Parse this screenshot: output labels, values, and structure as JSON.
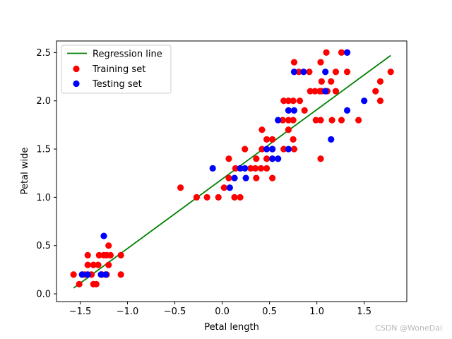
{
  "chart_data": {
    "type": "scatter",
    "title": "",
    "xlabel": "Petal length",
    "ylabel": "Petal wide",
    "xlim": [
      -1.75,
      1.95
    ],
    "ylim": [
      -0.08,
      2.62
    ],
    "xticks": [
      -1.5,
      -1.0,
      -0.5,
      0.0,
      0.5,
      1.0,
      1.5
    ],
    "xtick_labels": [
      "−1.5",
      "−1.0",
      "−0.5",
      "0.0",
      "0.5",
      "1.0",
      "1.5"
    ],
    "yticks": [
      0.0,
      0.5,
      1.0,
      1.5,
      2.0,
      2.5
    ],
    "ytick_labels": [
      "0.0",
      "0.5",
      "1.0",
      "1.5",
      "2.0",
      "2.5"
    ],
    "grid": false,
    "legend_position": "top-left",
    "series": [
      {
        "name": "Regression line",
        "kind": "line",
        "color": "#008000",
        "points": [
          [
            -1.57,
            0.06
          ],
          [
            1.78,
            2.47
          ]
        ]
      },
      {
        "name": "Training set",
        "kind": "scatter",
        "color": "#ff0000",
        "points": [
          [
            -1.57,
            0.2
          ],
          [
            -1.51,
            0.1
          ],
          [
            -1.45,
            0.2
          ],
          [
            -1.42,
            0.4
          ],
          [
            -1.42,
            0.3
          ],
          [
            -1.38,
            0.2
          ],
          [
            -1.36,
            0.1
          ],
          [
            -1.36,
            0.3
          ],
          [
            -1.33,
            0.1
          ],
          [
            -1.31,
            0.3
          ],
          [
            -1.3,
            0.4
          ],
          [
            -1.27,
            0.2
          ],
          [
            -1.25,
            0.4
          ],
          [
            -1.22,
            0.4
          ],
          [
            -1.22,
            0.2
          ],
          [
            -1.2,
            0.3
          ],
          [
            -1.2,
            0.5
          ],
          [
            -1.18,
            0.4
          ],
          [
            -1.07,
            0.4
          ],
          [
            -1.07,
            0.2
          ],
          [
            -0.44,
            1.1
          ],
          [
            -0.27,
            1.0
          ],
          [
            -0.16,
            1.0
          ],
          [
            -0.04,
            1.0
          ],
          [
            0.02,
            1.1
          ],
          [
            0.07,
            1.4
          ],
          [
            0.07,
            1.2
          ],
          [
            0.13,
            1.0
          ],
          [
            0.14,
            1.3
          ],
          [
            0.19,
            1.0
          ],
          [
            0.24,
            1.5
          ],
          [
            0.3,
            1.3
          ],
          [
            0.35,
            1.3
          ],
          [
            0.36,
            1.4
          ],
          [
            0.36,
            1.2
          ],
          [
            0.41,
            1.3
          ],
          [
            0.42,
            1.7
          ],
          [
            0.42,
            1.5
          ],
          [
            0.47,
            1.6
          ],
          [
            0.47,
            1.4
          ],
          [
            0.47,
            1.3
          ],
          [
            0.53,
            1.2
          ],
          [
            0.53,
            1.6
          ],
          [
            0.53,
            1.4
          ],
          [
            0.53,
            1.5
          ],
          [
            0.64,
            1.8
          ],
          [
            0.65,
            2.0
          ],
          [
            0.65,
            1.5
          ],
          [
            0.7,
            2.0
          ],
          [
            0.7,
            1.7
          ],
          [
            0.7,
            1.8
          ],
          [
            0.75,
            2.0
          ],
          [
            0.75,
            1.6
          ],
          [
            0.75,
            1.8
          ],
          [
            0.76,
            1.5
          ],
          [
            0.76,
            2.4
          ],
          [
            0.81,
            2.3
          ],
          [
            0.82,
            2.0
          ],
          [
            0.87,
            1.9
          ],
          [
            0.92,
            2.3
          ],
          [
            0.93,
            2.1
          ],
          [
            0.98,
            2.1
          ],
          [
            0.99,
            1.8
          ],
          [
            1.03,
            2.1
          ],
          [
            1.04,
            2.4
          ],
          [
            1.04,
            1.8
          ],
          [
            1.04,
            1.4
          ],
          [
            1.05,
            2.2
          ],
          [
            1.05,
            2.1
          ],
          [
            1.1,
            2.5
          ],
          [
            1.11,
            2.1
          ],
          [
            1.15,
            2.2
          ],
          [
            1.16,
            1.8
          ],
          [
            1.2,
            2.3
          ],
          [
            1.2,
            2.1
          ],
          [
            1.26,
            2.5
          ],
          [
            1.26,
            1.8
          ],
          [
            1.32,
            2.3
          ],
          [
            1.32,
            2.5
          ],
          [
            1.44,
            1.8
          ],
          [
            1.62,
            2.1
          ],
          [
            1.67,
            2.2
          ],
          [
            1.67,
            2.0
          ],
          [
            1.78,
            2.3
          ]
        ]
      },
      {
        "name": "Testing set",
        "kind": "scatter",
        "color": "#0000ff",
        "points": [
          [
            -1.48,
            0.2
          ],
          [
            -1.42,
            0.2
          ],
          [
            -1.28,
            0.2
          ],
          [
            -1.25,
            0.6
          ],
          [
            -1.23,
            0.2
          ],
          [
            -0.1,
            1.3
          ],
          [
            0.08,
            1.1
          ],
          [
            0.13,
            1.2
          ],
          [
            0.19,
            1.3
          ],
          [
            0.24,
            1.3
          ],
          [
            0.25,
            1.2
          ],
          [
            0.47,
            1.5
          ],
          [
            0.53,
            1.5
          ],
          [
            0.53,
            1.4
          ],
          [
            0.59,
            1.4
          ],
          [
            0.59,
            1.8
          ],
          [
            0.7,
            1.5
          ],
          [
            0.7,
            1.9
          ],
          [
            0.76,
            2.3
          ],
          [
            0.76,
            1.9
          ],
          [
            0.86,
            2.3
          ],
          [
            1.09,
            2.3
          ],
          [
            1.09,
            2.1
          ],
          [
            1.15,
            1.6
          ],
          [
            1.32,
            1.9
          ],
          [
            1.32,
            2.5
          ],
          [
            1.5,
            2.0
          ]
        ]
      }
    ]
  },
  "watermark": "CSDN @WoneDai"
}
